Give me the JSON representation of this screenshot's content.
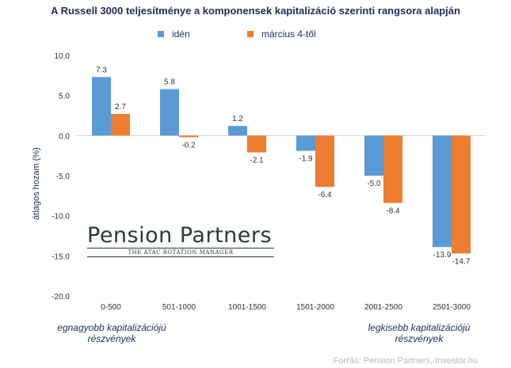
{
  "chart_data": {
    "type": "bar",
    "title": "A Russell 3000 teljesítménye  a komponensek kapitalizáció szerinti rangsora alapján",
    "ylabel": "átlagos hozam  (%)",
    "categories": [
      "0-500",
      "501-1000",
      "1001-1500",
      "1501-2000",
      "2001-2500",
      "2501-3000"
    ],
    "series": [
      {
        "name": "idén",
        "color": "#5b9bd5",
        "values": [
          7.3,
          5.8,
          1.2,
          -1.9,
          -5.0,
          -13.9
        ]
      },
      {
        "name": "március 4-től",
        "color": "#ed7d31",
        "values": [
          2.7,
          -0.2,
          -2.1,
          -6.4,
          -8.4,
          -14.7
        ]
      }
    ],
    "ylim": [
      -20.0,
      10.0
    ],
    "yticks": [
      "10.0",
      "5.0",
      "0.0",
      "-5.0",
      "-10.0",
      "-15.0",
      "-20.0"
    ],
    "grid": false,
    "legend": "top"
  },
  "annotations": {
    "left": [
      "egnagyobb kapitalizációjú",
      "részvények"
    ],
    "right": [
      "legkisebb kapitalizációjú",
      "részvények"
    ]
  },
  "logo": {
    "name": "Pension Partners",
    "tagline": "THE ATAC ROTATION MANAGER"
  },
  "source": "Forrás: Pension Partners,  Investor.hu"
}
